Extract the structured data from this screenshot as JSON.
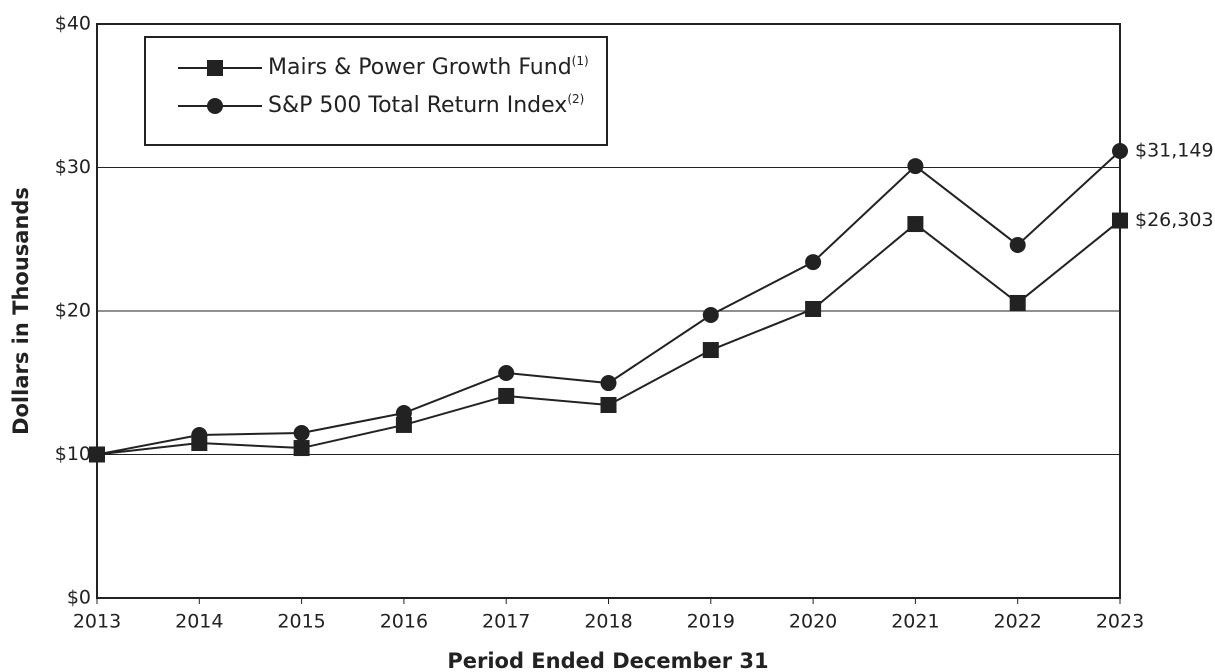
{
  "chart_data": {
    "type": "line",
    "y_label": "Dollars in Thousands",
    "x_label": "Period Ended December 31",
    "x": [
      2013,
      2014,
      2015,
      2016,
      2017,
      2018,
      2019,
      2020,
      2021,
      2022,
      2023
    ],
    "xlim": [
      2013,
      2023
    ],
    "xticks": [
      2013,
      2014,
      2015,
      2016,
      2017,
      2018,
      2019,
      2020,
      2021,
      2022,
      2023
    ],
    "ylim": [
      0,
      40
    ],
    "yticks": [
      {
        "value": 0,
        "label": "$0"
      },
      {
        "value": 10,
        "label": "$10"
      },
      {
        "value": 20,
        "label": "$20"
      },
      {
        "value": 30,
        "label": "$30"
      },
      {
        "value": 40,
        "label": "$40"
      }
    ],
    "grid": true,
    "series": [
      {
        "name": "Mairs & Power Growth Fund",
        "footnote": "(1)",
        "marker": "square",
        "color": "#222222",
        "values": [
          10,
          10.8,
          10.45,
          12.06,
          14.08,
          13.45,
          17.28,
          20.14,
          26.06,
          20.56,
          26.303
        ],
        "end_label": "$26,303"
      },
      {
        "name": "S&P 500 Total Return Index",
        "footnote": "(2)",
        "marker": "circle",
        "color": "#222222",
        "values": [
          10,
          11.36,
          11.5,
          12.89,
          15.68,
          14.98,
          19.72,
          23.41,
          30.1,
          24.6,
          31.149
        ],
        "end_label": "$31,149"
      }
    ]
  }
}
